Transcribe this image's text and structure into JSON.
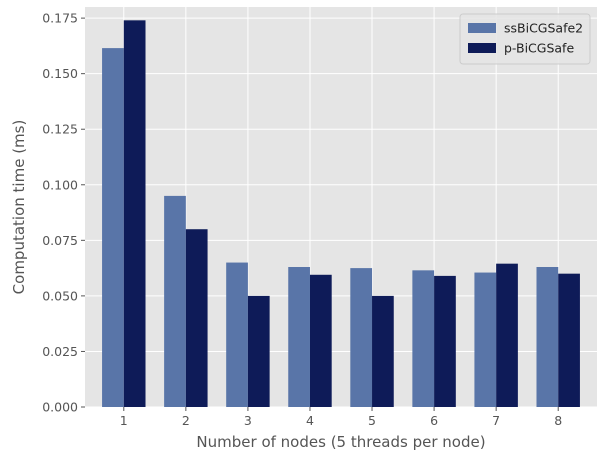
{
  "chart_data": {
    "type": "bar",
    "title": "",
    "xlabel": "Number of nodes (5 threads per node)",
    "ylabel": "Computation time (ms)",
    "categories": [
      "1",
      "2",
      "3",
      "4",
      "5",
      "6",
      "7",
      "8"
    ],
    "series": [
      {
        "name": "ssBiCGSafe2",
        "color": "#5975a8",
        "values": [
          0.1615,
          0.095,
          0.065,
          0.063,
          0.0625,
          0.0615,
          0.0605,
          0.063
        ]
      },
      {
        "name": "p-BiCGSafe",
        "color": "#0e1b58",
        "values": [
          0.174,
          0.08,
          0.05,
          0.0595,
          0.05,
          0.059,
          0.0645,
          0.06
        ]
      }
    ],
    "ylim": [
      0,
      0.18
    ],
    "yticks": [
      0.0,
      0.025,
      0.05,
      0.075,
      0.1,
      0.125,
      0.15,
      0.175
    ],
    "ytick_labels": [
      "0.000",
      "0.025",
      "0.050",
      "0.075",
      "0.100",
      "0.125",
      "0.150",
      "0.175"
    ],
    "grid": true,
    "legend_position": "top-right",
    "background_color": "#e5e5e5",
    "grid_color": "#ffffff"
  }
}
